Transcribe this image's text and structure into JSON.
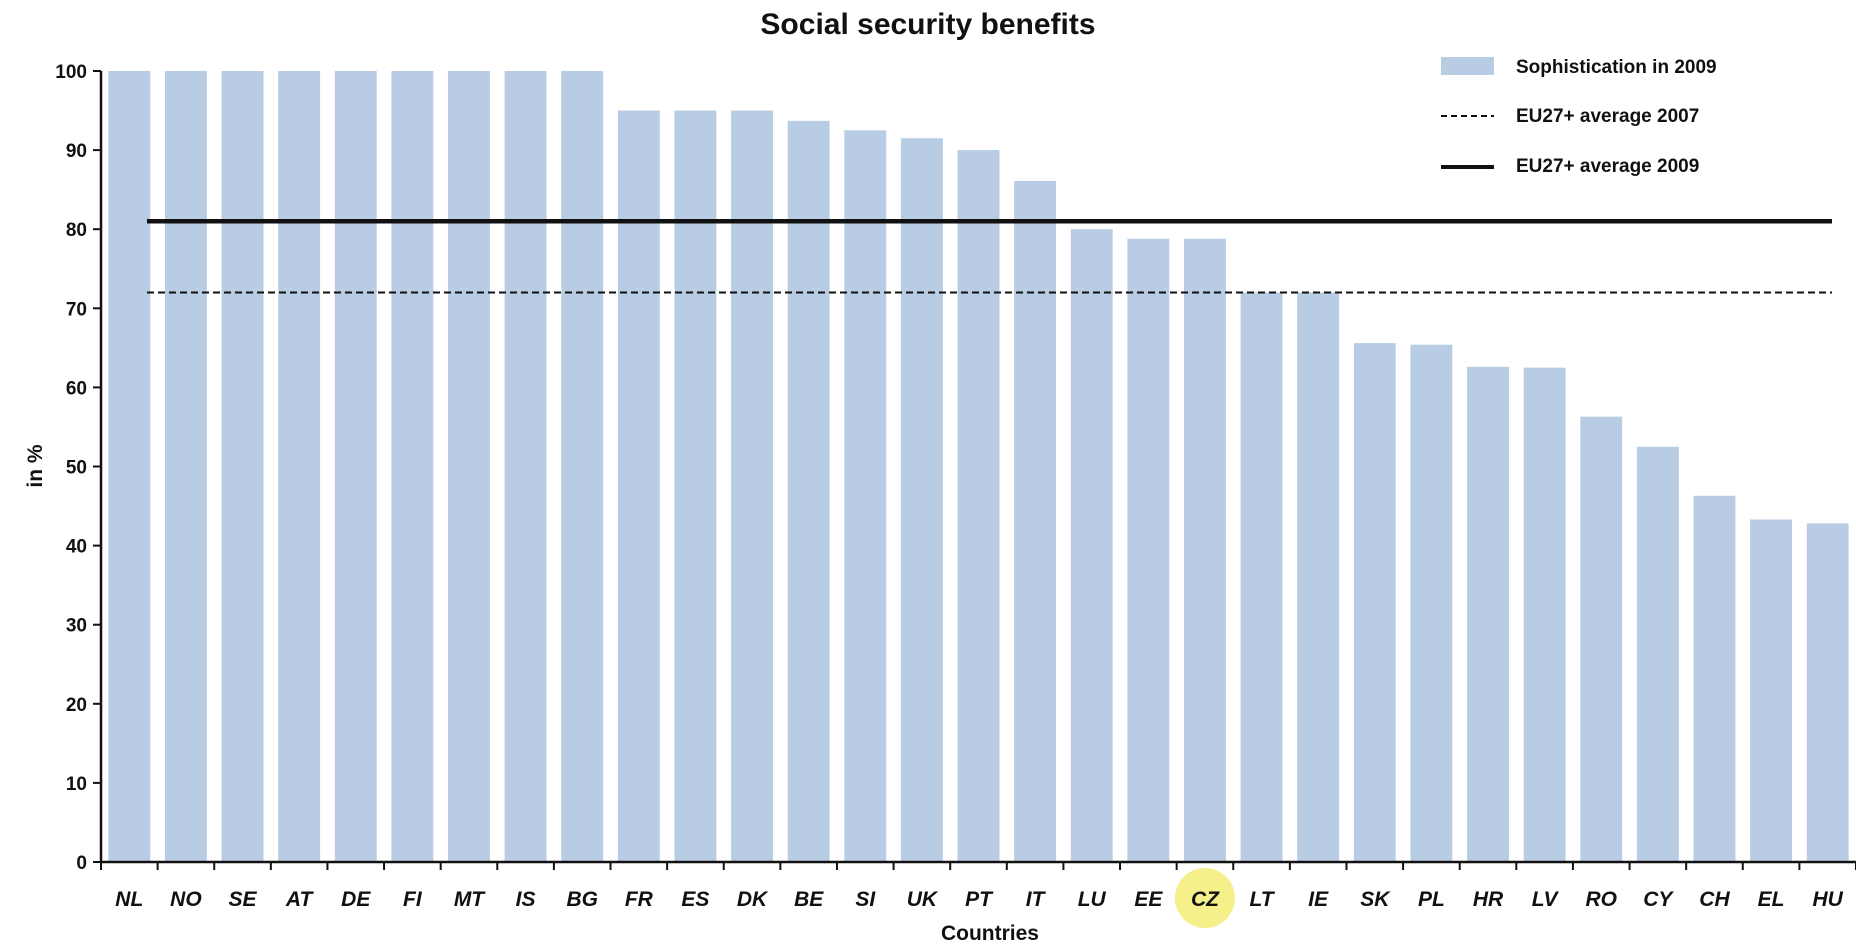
{
  "chart_data": {
    "type": "bar",
    "title": "Social security benefits",
    "xlabel": "Countries",
    "ylabel": "in %",
    "ylim": [
      0,
      100
    ],
    "yticks": [
      0,
      10,
      20,
      30,
      40,
      50,
      60,
      70,
      80,
      90,
      100
    ],
    "categories": [
      "NL",
      "NO",
      "SE",
      "AT",
      "DE",
      "FI",
      "MT",
      "IS",
      "BG",
      "FR",
      "ES",
      "DK",
      "BE",
      "SI",
      "UK",
      "PT",
      "IT",
      "LU",
      "EE",
      "CZ",
      "LT",
      "IE",
      "SK",
      "PL",
      "HR",
      "LV",
      "RO",
      "CY",
      "CH",
      "EL",
      "HU"
    ],
    "series": [
      {
        "name": "Sophistication in 2009",
        "color": "#b8cce4",
        "values": [
          100,
          100,
          100,
          100,
          100,
          100,
          100,
          100,
          100,
          95,
          95,
          95,
          93.7,
          92.5,
          91.5,
          90,
          86.1,
          80,
          78.8,
          78.8,
          72,
          72,
          65.6,
          65.4,
          62.6,
          62.5,
          56.3,
          52.5,
          46.3,
          43.3,
          42.8
        ]
      }
    ],
    "reference_lines": [
      {
        "name": "EU27+ average 2007",
        "value": 72,
        "style": "dashed",
        "color": "#111111"
      },
      {
        "name": "EU27+ average 2009",
        "value": 81,
        "style": "solid",
        "color": "#111111"
      }
    ],
    "highlight": {
      "category": "CZ",
      "color": "#f5f08a"
    },
    "legend_position": "top-right",
    "grid": false
  }
}
